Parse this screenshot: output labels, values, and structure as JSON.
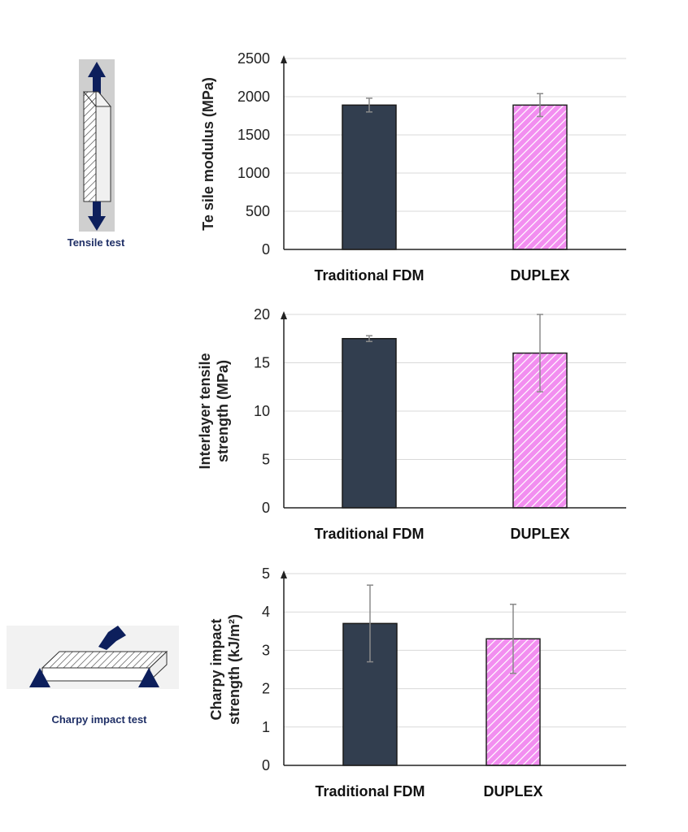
{
  "colors": {
    "traditional": "#323e4f",
    "duplex": "#f28ef0",
    "duplex_hatch": "#ffffff",
    "arrow": "#0d1f5c",
    "error_bar": "#8a8a8a",
    "grid": "#d9d9d9"
  },
  "insets": {
    "tensile": {
      "caption": "Tensile test",
      "icon": "tensile-specimen-icon"
    },
    "charpy": {
      "caption": "Charpy impact test",
      "icon": "charpy-specimen-icon"
    }
  },
  "chart_data": [
    {
      "type": "bar",
      "categories": [
        "Traditional FDM",
        "DUPLEX"
      ],
      "values": [
        1890,
        1890
      ],
      "errors": [
        90,
        150
      ],
      "ylabel": "Te  sile modulus (MPa)",
      "ylim": [
        0,
        2500
      ],
      "yticks": [
        0,
        500,
        1000,
        1500,
        2000,
        2500
      ],
      "grid": true
    },
    {
      "type": "bar",
      "categories": [
        "Traditional FDM",
        "DUPLEX"
      ],
      "values": [
        17.5,
        16.0
      ],
      "errors": [
        0.3,
        4.0
      ],
      "ylabel_lines": [
        "Interlayer tensile",
        "strength (MPa)"
      ],
      "ylim": [
        0,
        20
      ],
      "yticks": [
        0,
        5,
        10,
        15,
        20
      ],
      "grid": true
    },
    {
      "type": "bar",
      "categories": [
        "Traditional FDM",
        "DUPLEX"
      ],
      "values": [
        3.7,
        3.3
      ],
      "errors": [
        1.0,
        0.9
      ],
      "ylabel_lines": [
        "Charpy impact",
        "strength (kJ/m²)"
      ],
      "ylim": [
        0,
        5
      ],
      "yticks": [
        0,
        1,
        2,
        3,
        4,
        5
      ],
      "grid": true
    }
  ]
}
